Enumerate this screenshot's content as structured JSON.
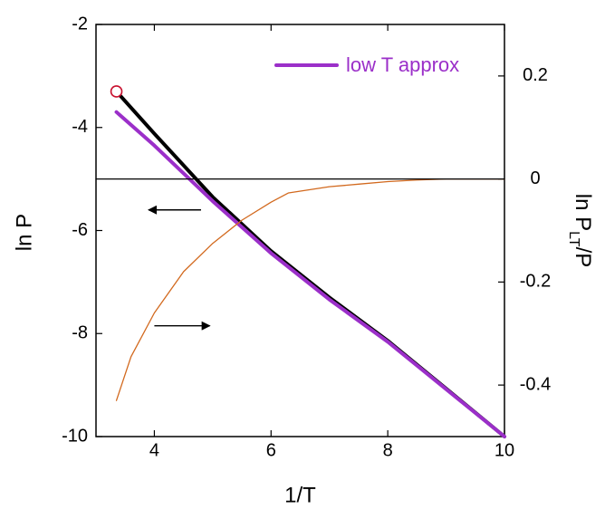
{
  "chart_data": {
    "type": "line",
    "xlabel": "1/T",
    "ylabel_left": "ln P",
    "ylabel_right_main": "ln P",
    "ylabel_right_sub": "LT",
    "ylabel_right_tail": "/P",
    "xlim": [
      3,
      10
    ],
    "ylim_left": [
      -10,
      -2
    ],
    "ylim_right": [
      -0.5,
      0.3
    ],
    "x_ticks": [
      4,
      6,
      8,
      10
    ],
    "x_tick_labels": [
      "4",
      "6",
      "8",
      "10"
    ],
    "y_left_ticks": [
      -10,
      -8,
      -6,
      -4,
      -2
    ],
    "y_left_tick_labels": [
      "-10",
      "-8",
      "-6",
      "-4",
      "-2"
    ],
    "y_right_ticks": [
      -0.4,
      -0.2,
      0,
      0.2
    ],
    "y_right_tick_labels": [
      "-0.4",
      "-0.2",
      "0",
      "0.2"
    ],
    "legend": {
      "label": "low T approx",
      "color": "#9b2fc9",
      "position": "top-right"
    },
    "series": [
      {
        "id": "exact",
        "axis": "left",
        "color": "#000000",
        "x": [
          3.35,
          4.0,
          5.0,
          6.0,
          7.0,
          8.0,
          9.0,
          10.0
        ],
        "y": [
          -3.3,
          -4.12,
          -5.35,
          -6.4,
          -7.3,
          -8.14,
          -9.07,
          -10.0
        ]
      },
      {
        "name": "low T approx",
        "axis": "left",
        "color": "#9b2fc9",
        "x": [
          3.35,
          4.0,
          5.0,
          6.0,
          7.0,
          8.0,
          9.0,
          10.0
        ],
        "y": [
          -3.7,
          -4.35,
          -5.43,
          -6.44,
          -7.34,
          -8.16,
          -9.08,
          -10.0
        ]
      },
      {
        "id": "ratio",
        "axis": "right",
        "color": "#d2691e",
        "x": [
          3.35,
          3.6,
          4.0,
          4.5,
          5.0,
          5.5,
          6.0,
          6.3,
          7.0,
          7.5,
          8.0,
          8.5,
          9.0,
          9.5,
          10.0
        ],
        "y": [
          -0.43,
          -0.345,
          -0.26,
          -0.18,
          -0.125,
          -0.08,
          -0.045,
          -0.027,
          -0.015,
          -0.01,
          -0.005,
          -0.002,
          0.0,
          0.0,
          0.0
        ]
      },
      {
        "id": "zero-line",
        "axis": "right",
        "color": "#000000",
        "x": [
          3,
          10
        ],
        "y": [
          0,
          0
        ]
      }
    ],
    "marker": {
      "axis": "left",
      "shape": "open-circle",
      "color": "#c8102e",
      "x": 3.35,
      "y": -3.3
    },
    "annotations": [
      {
        "type": "arrow",
        "direction": "left",
        "axis": "left",
        "from": [
          4.8,
          -5.6
        ],
        "to": [
          3.9,
          -5.6
        ]
      },
      {
        "type": "arrow",
        "direction": "right",
        "axis": "right",
        "from": [
          4.0,
          -0.285
        ],
        "to": [
          4.95,
          -0.285
        ]
      }
    ]
  }
}
